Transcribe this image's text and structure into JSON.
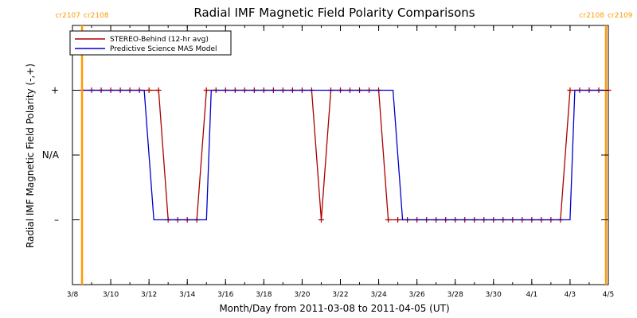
{
  "chart_data": {
    "type": "line",
    "title": "Radial IMF Magnetic Field Polarity Comparisons",
    "xlabel": "Month/Day from 2011-03-08 to 2011-04-05 (UT)",
    "ylabel": "Radial IMF Magnetic Field Polarity (-,+)",
    "xlim": [
      "2011-03-08",
      "2011-04-05"
    ],
    "ylim": [
      -2,
      2
    ],
    "x_ticks": [
      "3/8",
      "3/10",
      "3/12",
      "3/14",
      "3/16",
      "3/18",
      "3/20",
      "3/22",
      "3/24",
      "3/26",
      "3/28",
      "3/30",
      "4/1",
      "4/3",
      "4/5"
    ],
    "y_ticks": [
      {
        "value": 1,
        "label": "+"
      },
      {
        "value": 0,
        "label": "N/A"
      },
      {
        "value": -1,
        "label": "–"
      }
    ],
    "rotation_markers": [
      {
        "date": "2011-03-08 12:00",
        "left": "cr2107",
        "right": "cr2108",
        "color": "#ff9900"
      },
      {
        "date": "2011-04-04 21:00",
        "left": "cr2108",
        "right": "cr2109",
        "color": "#ff9900"
      }
    ],
    "series": [
      {
        "name": "STEREO-Behind (12-hr avg)",
        "color": "#aa0000",
        "marker": "+",
        "points": [
          [
            "2011-03-08 12:00",
            1
          ],
          [
            "2011-03-09 00:00",
            1
          ],
          [
            "2011-03-09 12:00",
            1
          ],
          [
            "2011-03-10 00:00",
            1
          ],
          [
            "2011-03-10 12:00",
            1
          ],
          [
            "2011-03-11 00:00",
            1
          ],
          [
            "2011-03-11 12:00",
            1
          ],
          [
            "2011-03-12 00:00",
            1
          ],
          [
            "2011-03-12 12:00",
            1
          ],
          [
            "2011-03-13 00:00",
            -1
          ],
          [
            "2011-03-13 12:00",
            -1
          ],
          [
            "2011-03-14 00:00",
            -1
          ],
          [
            "2011-03-14 12:00",
            -1
          ],
          [
            "2011-03-15 00:00",
            1
          ],
          [
            "2011-03-15 12:00",
            1
          ],
          [
            "2011-03-16 00:00",
            1
          ],
          [
            "2011-03-16 12:00",
            1
          ],
          [
            "2011-03-17 00:00",
            1
          ],
          [
            "2011-03-17 12:00",
            1
          ],
          [
            "2011-03-18 00:00",
            1
          ],
          [
            "2011-03-18 12:00",
            1
          ],
          [
            "2011-03-19 00:00",
            1
          ],
          [
            "2011-03-19 12:00",
            1
          ],
          [
            "2011-03-20 00:00",
            1
          ],
          [
            "2011-03-20 12:00",
            1
          ],
          [
            "2011-03-21 00:00",
            -1
          ],
          [
            "2011-03-21 12:00",
            1
          ],
          [
            "2011-03-22 00:00",
            1
          ],
          [
            "2011-03-22 12:00",
            1
          ],
          [
            "2011-03-23 00:00",
            1
          ],
          [
            "2011-03-23 12:00",
            1
          ],
          [
            "2011-03-24 00:00",
            1
          ],
          [
            "2011-03-24 12:00",
            -1
          ],
          [
            "2011-03-25 00:00",
            -1
          ],
          [
            "2011-03-25 12:00",
            -1
          ],
          [
            "2011-03-26 00:00",
            -1
          ],
          [
            "2011-03-26 12:00",
            -1
          ],
          [
            "2011-03-27 00:00",
            -1
          ],
          [
            "2011-03-27 12:00",
            -1
          ],
          [
            "2011-03-28 00:00",
            -1
          ],
          [
            "2011-03-28 12:00",
            -1
          ],
          [
            "2011-03-29 00:00",
            -1
          ],
          [
            "2011-03-29 12:00",
            -1
          ],
          [
            "2011-03-30 00:00",
            -1
          ],
          [
            "2011-03-30 12:00",
            -1
          ],
          [
            "2011-03-31 00:00",
            -1
          ],
          [
            "2011-03-31 12:00",
            -1
          ],
          [
            "2011-04-01 00:00",
            -1
          ],
          [
            "2011-04-01 12:00",
            -1
          ],
          [
            "2011-04-02 00:00",
            -1
          ],
          [
            "2011-04-02 12:00",
            -1
          ],
          [
            "2011-04-03 00:00",
            1
          ],
          [
            "2011-04-03 12:00",
            1
          ],
          [
            "2011-04-04 00:00",
            1
          ],
          [
            "2011-04-04 12:00",
            1
          ],
          [
            "2011-04-05 00:00",
            1
          ]
        ]
      },
      {
        "name": "Predictive Science MAS Model",
        "color": "#0000cc",
        "points": [
          [
            "2011-03-08 12:00",
            1
          ],
          [
            "2011-03-11 18:00",
            1
          ],
          [
            "2011-03-12 06:00",
            -1
          ],
          [
            "2011-03-15 00:00",
            -1
          ],
          [
            "2011-03-15 06:00",
            1
          ],
          [
            "2011-03-24 18:00",
            1
          ],
          [
            "2011-03-25 06:00",
            -1
          ],
          [
            "2011-04-03 00:00",
            -1
          ],
          [
            "2011-04-03 06:00",
            1
          ],
          [
            "2011-04-05 00:00",
            1
          ]
        ]
      }
    ]
  }
}
